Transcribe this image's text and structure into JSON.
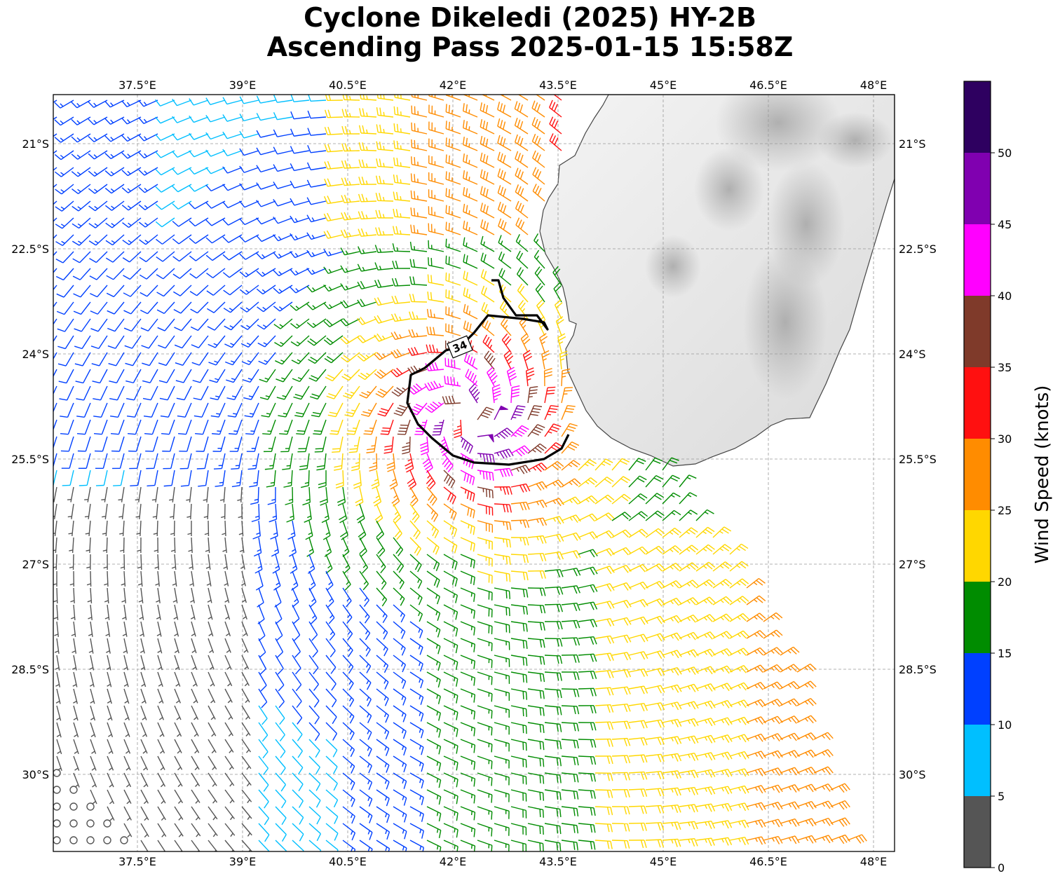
{
  "title": {
    "line1": "Cyclone Dikeledi (2025) HY-2B",
    "line2": "Ascending Pass 2025-01-15 15:58Z"
  },
  "map": {
    "lon_range": [
      36.3,
      48.3
    ],
    "lat_range": [
      -31.1,
      -20.3
    ],
    "lon_ticks": [
      {
        "value": 37.5,
        "label": "37.5°E"
      },
      {
        "value": 39,
        "label": "39°E"
      },
      {
        "value": 40.5,
        "label": "40.5°E"
      },
      {
        "value": 42,
        "label": "42°E"
      },
      {
        "value": 43.5,
        "label": "43.5°E"
      },
      {
        "value": 45,
        "label": "45°E"
      },
      {
        "value": 46.5,
        "label": "46.5°E"
      },
      {
        "value": 48,
        "label": "48°E"
      }
    ],
    "lat_ticks": [
      {
        "value": -21,
        "label": "21°S"
      },
      {
        "value": -22.5,
        "label": "22.5°S"
      },
      {
        "value": -24,
        "label": "24°S"
      },
      {
        "value": -25.5,
        "label": "25.5°S"
      },
      {
        "value": -27,
        "label": "27°S"
      },
      {
        "value": -28.5,
        "label": "28.5°S"
      },
      {
        "value": -30,
        "label": "30°S"
      }
    ],
    "gridlines": true,
    "land": "Madagascar (grayscale terrain)",
    "storm_center": {
      "lon": 42.2,
      "lat": -24.9
    },
    "wind_contour": {
      "label": "34",
      "level_knots": 34,
      "points": [
        [
          42.55,
          -22.95
        ],
        [
          42.65,
          -22.95
        ],
        [
          42.72,
          -23.2
        ],
        [
          42.9,
          -23.45
        ],
        [
          43.2,
          -23.45
        ],
        [
          43.35,
          -23.65
        ],
        [
          43.3,
          -23.55
        ],
        [
          43.0,
          -23.5
        ],
        [
          42.5,
          -23.45
        ],
        [
          42.3,
          -23.7
        ],
        [
          42.1,
          -23.9
        ],
        [
          41.9,
          -23.95
        ],
        [
          41.6,
          -24.2
        ],
        [
          41.4,
          -24.3
        ],
        [
          41.35,
          -24.7
        ],
        [
          41.5,
          -25.0
        ],
        [
          41.7,
          -25.2
        ],
        [
          42.0,
          -25.45
        ],
        [
          42.3,
          -25.55
        ],
        [
          42.8,
          -25.58
        ],
        [
          43.3,
          -25.5
        ],
        [
          43.55,
          -25.35
        ],
        [
          43.65,
          -25.15
        ]
      ],
      "label_at": {
        "lon": 42.1,
        "lat": -23.9
      }
    }
  },
  "colorbar": {
    "title": "Wind Speed (knots)",
    "ticks": [
      "0",
      "5",
      "10",
      "15",
      "20",
      "25",
      "30",
      "35",
      "40",
      "45",
      "50"
    ],
    "bins": [
      {
        "min": 0,
        "max": 5,
        "color": "#555555"
      },
      {
        "min": 5,
        "max": 10,
        "color": "#00BFFF"
      },
      {
        "min": 10,
        "max": 15,
        "color": "#0040FF"
      },
      {
        "min": 15,
        "max": 20,
        "color": "#008C00"
      },
      {
        "min": 20,
        "max": 25,
        "color": "#FFD700"
      },
      {
        "min": 25,
        "max": 30,
        "color": "#FF8C00"
      },
      {
        "min": 30,
        "max": 35,
        "color": "#FF1010"
      },
      {
        "min": 35,
        "max": 40,
        "color": "#7F3A2A"
      },
      {
        "min": 40,
        "max": 45,
        "color": "#FF00FF"
      },
      {
        "min": 45,
        "max": 50,
        "color": "#8000B0"
      },
      {
        "min": 50,
        "max": 55,
        "color": "#2E0060"
      }
    ],
    "max": 55
  },
  "chart_data": {
    "type": "wind-barb map",
    "variable": "Wind Speed (knots)",
    "storm_center": {
      "lon": 42.2,
      "lat": -24.9
    },
    "peak_speed_knots": 46,
    "speed_range_knots": [
      0,
      50
    ],
    "barb_spacing_deg": 0.24,
    "swath_edges": [
      {
        "lat": -25.5,
        "east_lon": 45.0
      },
      {
        "lat": -27.0,
        "east_lon": 46.05
      },
      {
        "lat": -28.5,
        "east_lon": 46.9
      },
      {
        "lat": -31.0,
        "east_lon": 47.7
      }
    ],
    "calm_region": {
      "lon_range": [
        36.5,
        38.9
      ],
      "lat_range": [
        -31.0,
        -26.0
      ]
    }
  }
}
